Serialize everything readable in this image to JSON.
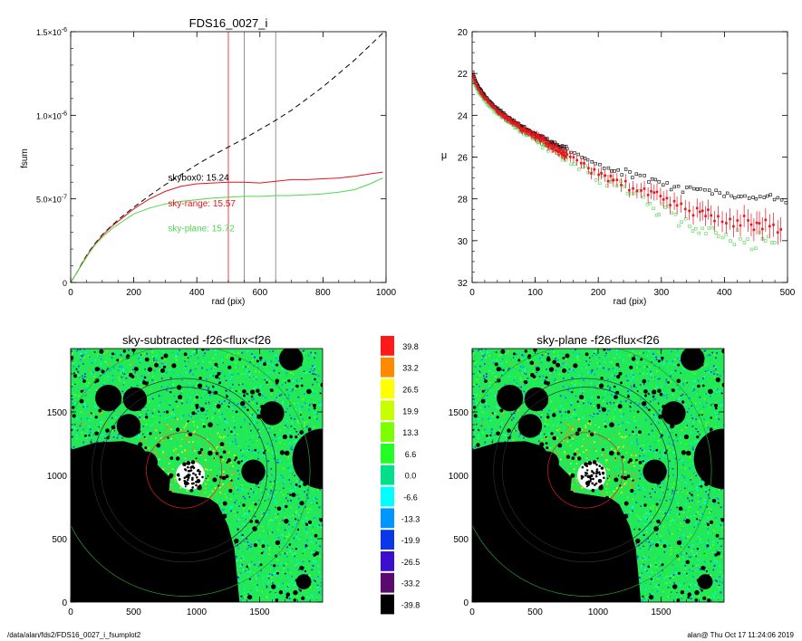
{
  "footer": {
    "left": "/data/alan/fds2/FDS16_0027_i_fsumplot2",
    "right": "alan@  Thu Oct 17 11:24:06 2019"
  },
  "chart_data": [
    {
      "type": "line",
      "title": "FDS16_0027_i",
      "xlabel": "rad (pix)",
      "ylabel": "fsum",
      "xlim": [
        0,
        1000
      ],
      "ylim": [
        0,
        1.5e-06
      ],
      "xticks": [
        "0",
        "200",
        "400",
        "600",
        "800",
        "1000"
      ],
      "yticks": [
        {
          "mant": "0",
          "exp": "",
          "value": 0
        },
        {
          "mant": "5.0×10",
          "exp": "-7",
          "value": 5e-07
        },
        {
          "mant": "1.0×10",
          "exp": "-6",
          "value": 1e-06
        },
        {
          "mant": "1.5×10",
          "exp": "-6",
          "value": 1.5e-06
        }
      ],
      "vlines": [
        {
          "x": 500,
          "color": "#e8141e"
        },
        {
          "x": 550,
          "color": "#777777"
        },
        {
          "x": 650,
          "color": "#777777"
        }
      ],
      "annotations": [
        {
          "text": "skybox0: 15.24",
          "color": "#000000",
          "x": 300,
          "y": 6.1e-07
        },
        {
          "text": "sky-range: 15.57",
          "color": "#e8141e",
          "x": 300,
          "y": 4.55e-07
        },
        {
          "text": "sky-plane: 15.72",
          "color": "#4ed84e",
          "x": 300,
          "y": 3.05e-07
        }
      ],
      "series": [
        {
          "color": "#000000",
          "dash": true,
          "x": [
            0,
            20,
            40,
            60,
            80,
            100,
            130,
            160,
            200,
            250,
            300,
            350,
            400,
            450,
            500,
            550,
            600,
            650,
            700,
            750,
            800,
            850,
            900,
            950,
            1000
          ],
          "y": [
            0,
            6e-08,
            1.3e-07,
            1.9e-07,
            2.4e-07,
            2.85e-07,
            3.4e-07,
            3.9e-07,
            4.5e-07,
            5.2e-07,
            5.85e-07,
            6.45e-07,
            7.05e-07,
            7.6e-07,
            8.1e-07,
            8.6e-07,
            9.15e-07,
            9.7e-07,
            1.03e-06,
            1.1e-06,
            1.17e-06,
            1.25e-06,
            1.33e-06,
            1.42e-06,
            1.51e-06
          ]
        },
        {
          "color": "#e8141e",
          "dash": false,
          "x": [
            0,
            20,
            40,
            60,
            80,
            100,
            130,
            160,
            200,
            250,
            300,
            350,
            400,
            450,
            500,
            550,
            600,
            650,
            700,
            750,
            800,
            850,
            900,
            950,
            990
          ],
          "y": [
            0,
            6e-08,
            1.25e-07,
            1.85e-07,
            2.35e-07,
            2.8e-07,
            3.35e-07,
            3.8e-07,
            4.4e-07,
            5e-07,
            5.45e-07,
            5.75e-07,
            5.9e-07,
            5.95e-07,
            6e-07,
            6e-07,
            5.95e-07,
            6.05e-07,
            6.15e-07,
            6.15e-07,
            6.2e-07,
            6.25e-07,
            6.35e-07,
            6.5e-07,
            6.6e-07
          ]
        },
        {
          "color": "#4ed84e",
          "dash": false,
          "x": [
            0,
            20,
            40,
            60,
            80,
            100,
            130,
            160,
            200,
            250,
            300,
            350,
            400,
            450,
            500,
            550,
            600,
            650,
            700,
            750,
            800,
            850,
            900,
            950,
            990
          ],
          "y": [
            0,
            6e-08,
            1.2e-07,
            1.8e-07,
            2.3e-07,
            2.7e-07,
            3.2e-07,
            3.6e-07,
            4.1e-07,
            4.45e-07,
            4.7e-07,
            4.85e-07,
            4.95e-07,
            5.05e-07,
            5.1e-07,
            5.15e-07,
            5.15e-07,
            5.2e-07,
            5.2e-07,
            5.25e-07,
            5.3e-07,
            5.4e-07,
            5.55e-07,
            5.9e-07,
            6.25e-07
          ]
        }
      ]
    },
    {
      "type": "scatter",
      "title": "",
      "xlabel": "rad (pix)",
      "ylabel": "μ",
      "xlim": [
        0,
        500
      ],
      "ylim": [
        32,
        20
      ],
      "xticks": [
        "0",
        "100",
        "200",
        "300",
        "400",
        "500"
      ],
      "yticks": [
        "20",
        "22",
        "24",
        "26",
        "28",
        "30",
        "32"
      ],
      "series": [
        {
          "color": "#000000",
          "marker": "square",
          "profile": [
            [
              0,
              21.6
            ],
            [
              100,
              24.9
            ],
            [
              200,
              26.4
            ],
            [
              300,
              27.3
            ],
            [
              400,
              27.8
            ],
            [
              500,
              28.0
            ]
          ],
          "scatter": 0.25,
          "radius_max": 500
        },
        {
          "color": "#e8141e",
          "marker": "errorbar",
          "profile": [
            [
              0,
              21.7
            ],
            [
              100,
              25.0
            ],
            [
              200,
              26.8
            ],
            [
              300,
              28.0
            ],
            [
              400,
              29.0
            ],
            [
              500,
              29.4
            ]
          ],
          "scatter": 0.5,
          "radius_max": 490
        },
        {
          "color": "#4ed84e",
          "marker": "square",
          "profile": [
            [
              0,
              21.8
            ],
            [
              100,
              25.1
            ],
            [
              200,
              27.0
            ],
            [
              300,
              28.4
            ],
            [
              400,
              29.8
            ],
            [
              500,
              30.2
            ]
          ],
          "scatter": 0.8,
          "radius_max": 480
        }
      ]
    },
    {
      "type": "heatmap",
      "title": "sky-subtracted -f26<flux<f26",
      "xlim": [
        0,
        2000
      ],
      "ylim": [
        0,
        2000
      ],
      "xticks": [
        "0",
        "500",
        "1000",
        "1500"
      ],
      "yticks": [
        "0",
        "500",
        "1000",
        "1500"
      ]
    },
    {
      "type": "heatmap",
      "title": "sky-plane -f26<flux<f26",
      "xlim": [
        0,
        2000
      ],
      "ylim": [
        0,
        2000
      ],
      "xticks": [
        "0",
        "500",
        "1000",
        "1500"
      ],
      "yticks": [
        "0",
        "500",
        "1000",
        "1500"
      ]
    }
  ],
  "colorbar": {
    "labels": [
      "39.8",
      "33.2",
      "26.5",
      "19.9",
      "13.3",
      "6.6",
      "0.0",
      "-6.6",
      "-13.3",
      "-19.9",
      "-26.5",
      "-33.2",
      "-39.8"
    ],
    "colors": [
      "#ff1a1a",
      "#ff8a00",
      "#ffff00",
      "#c8ff00",
      "#7cff00",
      "#22ff22",
      "#00e08a",
      "#00ffff",
      "#0096ff",
      "#0a37e8",
      "#3c0fd0",
      "#5a0a6e",
      "#000000"
    ]
  }
}
